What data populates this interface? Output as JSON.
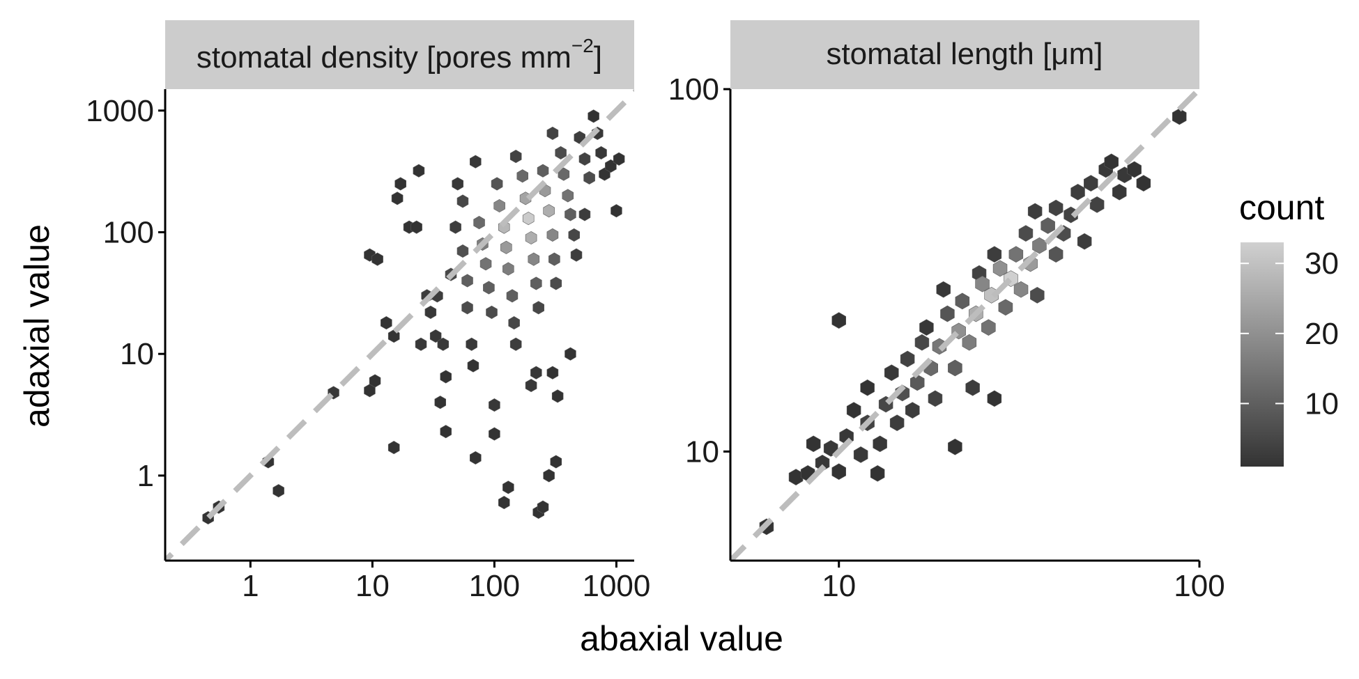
{
  "chart_data": [
    {
      "type": "scatter",
      "subtype": "hexbin",
      "panel_title": "stomatal density [pores mm",
      "panel_title_sup": "−2",
      "panel_title_end": "]",
      "xscale": "log",
      "yscale": "log",
      "xlim": [
        0.2,
        1400
      ],
      "ylim": [
        0.2,
        1500
      ],
      "xticks": [
        1,
        10,
        100,
        1000
      ],
      "xtick_labels": [
        "1",
        "10",
        "100",
        "1000"
      ],
      "yticks": [
        1,
        10,
        100,
        1000
      ],
      "ytick_labels": [
        "1",
        "10",
        "100",
        "1000"
      ],
      "reference_line": "y = x",
      "points": [
        [
          0.45,
          0.45,
          1
        ],
        [
          0.55,
          0.55,
          1
        ],
        [
          1.4,
          1.3,
          1
        ],
        [
          1.7,
          0.75,
          1
        ],
        [
          4.8,
          4.8,
          2
        ],
        [
          9.5,
          5,
          1
        ],
        [
          10.5,
          6,
          1
        ],
        [
          15,
          1.7,
          1
        ],
        [
          9.5,
          65,
          1
        ],
        [
          11,
          60,
          1
        ],
        [
          13,
          18,
          1
        ],
        [
          15,
          14,
          1
        ],
        [
          16,
          190,
          1
        ],
        [
          17,
          250,
          1
        ],
        [
          20,
          110,
          1
        ],
        [
          23,
          110,
          1
        ],
        [
          24,
          320,
          1
        ],
        [
          25,
          12,
          2
        ],
        [
          28,
          30,
          3
        ],
        [
          30,
          22,
          2
        ],
        [
          33,
          14,
          2
        ],
        [
          34,
          30,
          3
        ],
        [
          38,
          12,
          2
        ],
        [
          36,
          4,
          1
        ],
        [
          40,
          6.5,
          1
        ],
        [
          40,
          2.3,
          1
        ],
        [
          44,
          45,
          5
        ],
        [
          48,
          110,
          3
        ],
        [
          50,
          250,
          2
        ],
        [
          55,
          180,
          5
        ],
        [
          55,
          70,
          7
        ],
        [
          60,
          40,
          10
        ],
        [
          60,
          24,
          6
        ],
        [
          65,
          12,
          2
        ],
        [
          67,
          8,
          1
        ],
        [
          70,
          1.4,
          1
        ],
        [
          70,
          380,
          2
        ],
        [
          75,
          120,
          12
        ],
        [
          80,
          80,
          16
        ],
        [
          85,
          55,
          14
        ],
        [
          90,
          35,
          10
        ],
        [
          95,
          22,
          6
        ],
        [
          100,
          3.8,
          2
        ],
        [
          100,
          2.2,
          1
        ],
        [
          105,
          250,
          8
        ],
        [
          110,
          165,
          18
        ],
        [
          120,
          110,
          28
        ],
        [
          125,
          75,
          22
        ],
        [
          130,
          50,
          16
        ],
        [
          140,
          30,
          10
        ],
        [
          145,
          18,
          5
        ],
        [
          150,
          12,
          3
        ],
        [
          120,
          0.6,
          1
        ],
        [
          130,
          0.8,
          1
        ],
        [
          150,
          420,
          4
        ],
        [
          170,
          290,
          12
        ],
        [
          180,
          190,
          24
        ],
        [
          190,
          130,
          32
        ],
        [
          200,
          90,
          26
        ],
        [
          210,
          60,
          18
        ],
        [
          220,
          38,
          10
        ],
        [
          230,
          24,
          5
        ],
        [
          200,
          5.5,
          2
        ],
        [
          220,
          7,
          2
        ],
        [
          230,
          0.5,
          1
        ],
        [
          250,
          0.55,
          1
        ],
        [
          250,
          320,
          10
        ],
        [
          260,
          220,
          22
        ],
        [
          280,
          150,
          26
        ],
        [
          300,
          95,
          18
        ],
        [
          310,
          60,
          10
        ],
        [
          320,
          38,
          6
        ],
        [
          300,
          7,
          1
        ],
        [
          330,
          4.5,
          1
        ],
        [
          280,
          1,
          1
        ],
        [
          320,
          1.3,
          1
        ],
        [
          300,
          650,
          4
        ],
        [
          350,
          450,
          6
        ],
        [
          370,
          300,
          12
        ],
        [
          400,
          200,
          14
        ],
        [
          420,
          140,
          10
        ],
        [
          450,
          95,
          5
        ],
        [
          470,
          65,
          3
        ],
        [
          420,
          10,
          1
        ],
        [
          500,
          600,
          3
        ],
        [
          550,
          400,
          4
        ],
        [
          600,
          280,
          6
        ],
        [
          650,
          900,
          1
        ],
        [
          700,
          650,
          2
        ],
        [
          750,
          450,
          2
        ],
        [
          800,
          300,
          1
        ],
        [
          900,
          350,
          1
        ],
        [
          1000,
          150,
          1
        ],
        [
          1050,
          400,
          1
        ],
        [
          550,
          140,
          3
        ]
      ]
    },
    {
      "type": "scatter",
      "subtype": "hexbin",
      "panel_title": "stomatal length [μm]",
      "xscale": "log",
      "yscale": "log",
      "xlim": [
        5,
        100
      ],
      "ylim": [
        5,
        100
      ],
      "xticks": [
        10,
        100
      ],
      "xtick_labels": [
        "10",
        "100"
      ],
      "yticks": [
        10,
        100
      ],
      "ytick_labels": [
        "10",
        "100"
      ],
      "reference_line": "y = x",
      "points": [
        [
          6.3,
          6.2,
          1
        ],
        [
          7.6,
          8.5,
          1
        ],
        [
          8.2,
          8.7,
          1
        ],
        [
          8.5,
          10.5,
          1
        ],
        [
          9,
          9.3,
          2
        ],
        [
          9.5,
          10.2,
          2
        ],
        [
          10,
          8.8,
          1
        ],
        [
          10,
          23,
          1
        ],
        [
          10.5,
          11,
          2
        ],
        [
          11,
          13,
          1
        ],
        [
          11.5,
          9.8,
          2
        ],
        [
          12,
          12,
          4
        ],
        [
          12,
          15,
          1
        ],
        [
          12.8,
          8.7,
          1
        ],
        [
          13,
          10.5,
          2
        ],
        [
          13.5,
          13.5,
          5
        ],
        [
          14,
          16.5,
          2
        ],
        [
          14.5,
          12,
          3
        ],
        [
          15,
          14.5,
          7
        ],
        [
          15.5,
          18,
          4
        ],
        [
          16,
          13,
          3
        ],
        [
          16.5,
          15.5,
          9
        ],
        [
          17,
          20,
          5
        ],
        [
          17.5,
          22,
          2
        ],
        [
          18,
          17,
          12
        ],
        [
          18.5,
          14,
          4
        ],
        [
          19,
          19.5,
          15
        ],
        [
          19.5,
          28,
          2
        ],
        [
          20,
          24,
          8
        ],
        [
          21,
          10.3,
          1
        ],
        [
          21,
          17,
          10
        ],
        [
          21.5,
          21.5,
          20
        ],
        [
          22,
          26,
          10
        ],
        [
          23,
          20,
          16
        ],
        [
          23.5,
          15,
          3
        ],
        [
          24,
          24,
          26
        ],
        [
          24.5,
          31,
          4
        ],
        [
          25,
          29,
          18
        ],
        [
          26,
          22,
          14
        ],
        [
          26.5,
          27,
          30
        ],
        [
          27,
          35,
          3
        ],
        [
          28,
          32,
          20
        ],
        [
          29,
          25,
          12
        ],
        [
          30,
          30,
          33
        ],
        [
          31,
          35,
          14
        ],
        [
          32,
          28,
          18
        ],
        [
          33,
          40,
          6
        ],
        [
          34,
          33,
          22
        ],
        [
          35,
          46,
          3
        ],
        [
          35.5,
          27,
          6
        ],
        [
          36,
          37,
          16
        ],
        [
          38,
          42,
          10
        ],
        [
          40,
          35,
          8
        ],
        [
          40,
          47,
          4
        ],
        [
          42,
          40,
          6
        ],
        [
          44,
          45,
          4
        ],
        [
          46,
          52,
          3
        ],
        [
          48,
          38,
          3
        ],
        [
          50,
          55,
          3
        ],
        [
          52,
          48,
          4
        ],
        [
          55,
          60,
          2
        ],
        [
          57,
          63,
          1
        ],
        [
          60,
          52,
          2
        ],
        [
          62,
          58,
          2
        ],
        [
          66,
          60,
          1
        ],
        [
          70,
          55,
          1
        ],
        [
          88,
          84,
          1
        ],
        [
          27,
          14,
          1
        ]
      ]
    }
  ],
  "axes": {
    "x_title": "abaxial value",
    "y_title": "adaxial value"
  },
  "legend": {
    "title": "count",
    "ticks": [
      10,
      20,
      30
    ],
    "tick_labels": [
      "10",
      "20",
      "30"
    ],
    "range": [
      1,
      33
    ],
    "color_low": "#333333",
    "color_high": "#d0d0d0"
  },
  "colors": {
    "strip_fill": "#cccccc",
    "reference_line": "#bdbdbd",
    "hex_edge": "#5a5a5a"
  }
}
